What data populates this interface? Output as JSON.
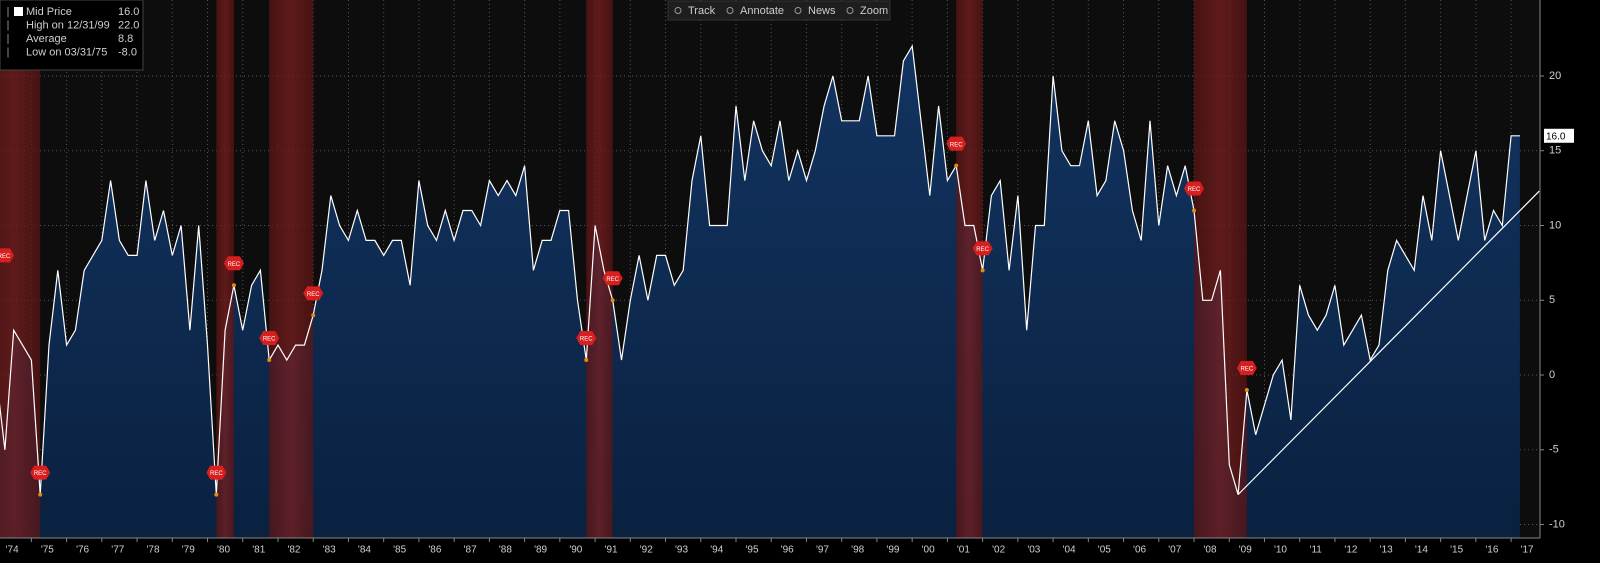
{
  "chart_data": {
    "type": "area",
    "toolbar": [
      "Track",
      "Annotate",
      "News",
      "Zoom"
    ],
    "legend": [
      {
        "label": "Mid Price",
        "value": "16.0"
      },
      {
        "label": "High on 12/31/99",
        "value": "22.0"
      },
      {
        "label": "Average",
        "value": "8.8"
      },
      {
        "label": "Low on 03/31/75",
        "value": "-8.0"
      }
    ],
    "recession_label": "REC",
    "recessions": [
      [
        1973.75,
        1975.25
      ],
      [
        1980.25,
        1980.75
      ],
      [
        1981.75,
        1983.0
      ],
      [
        1990.75,
        1991.5
      ],
      [
        2001.25,
        2002.0
      ],
      [
        2008.0,
        2009.5
      ]
    ],
    "x": [
      1974.0,
      1974.25,
      1974.5,
      1974.75,
      1975.0,
      1975.25,
      1975.5,
      1975.75,
      1976.0,
      1976.25,
      1976.5,
      1976.75,
      1977.0,
      1977.25,
      1977.5,
      1977.75,
      1978.0,
      1978.25,
      1978.5,
      1978.75,
      1979.0,
      1979.25,
      1979.5,
      1979.75,
      1980.0,
      1980.25,
      1980.5,
      1980.75,
      1981.0,
      1981.25,
      1981.5,
      1981.75,
      1982.0,
      1982.25,
      1982.5,
      1982.75,
      1983.0,
      1983.25,
      1983.5,
      1983.75,
      1984.0,
      1984.25,
      1984.5,
      1984.75,
      1985.0,
      1985.25,
      1985.5,
      1985.75,
      1986.0,
      1986.25,
      1986.5,
      1986.75,
      1987.0,
      1987.25,
      1987.5,
      1987.75,
      1988.0,
      1988.25,
      1988.5,
      1988.75,
      1989.0,
      1989.25,
      1989.5,
      1989.75,
      1990.0,
      1990.25,
      1990.5,
      1990.75,
      1991.0,
      1991.25,
      1991.5,
      1991.75,
      1992.0,
      1992.25,
      1992.5,
      1992.75,
      1993.0,
      1993.25,
      1993.5,
      1993.75,
      1994.0,
      1994.25,
      1994.5,
      1994.75,
      1995.0,
      1995.25,
      1995.5,
      1995.75,
      1996.0,
      1996.25,
      1996.5,
      1996.75,
      1997.0,
      1997.25,
      1997.5,
      1997.75,
      1998.0,
      1998.25,
      1998.5,
      1998.75,
      1999.0,
      1999.25,
      1999.5,
      1999.75,
      2000.0,
      2000.25,
      2000.5,
      2000.75,
      2001.0,
      2001.25,
      2001.5,
      2001.75,
      2002.0,
      2002.25,
      2002.5,
      2002.75,
      2003.0,
      2003.25,
      2003.5,
      2003.75,
      2004.0,
      2004.25,
      2004.5,
      2004.75,
      2005.0,
      2005.25,
      2005.5,
      2005.75,
      2006.0,
      2006.25,
      2006.5,
      2006.75,
      2007.0,
      2007.25,
      2007.5,
      2007.75,
      2008.0,
      2008.25,
      2008.5,
      2008.75,
      2009.0,
      2009.25,
      2009.5,
      2009.75,
      2010.0,
      2010.25,
      2010.5,
      2010.75,
      2011.0,
      2011.25,
      2011.5,
      2011.75,
      2012.0,
      2012.25,
      2012.5,
      2012.75,
      2013.0,
      2013.25,
      2013.5,
      2013.75,
      2014.0,
      2014.25,
      2014.5,
      2014.75,
      2015.0,
      2015.25,
      2015.5,
      2015.75,
      2016.0,
      2016.25,
      2016.5,
      2016.75,
      2017.0,
      2017.25
    ],
    "series": [
      {
        "name": "Mid Price",
        "color": "#ffffff",
        "fill": "#123461",
        "values": [
          0,
          -5,
          3,
          2,
          1,
          -8,
          2,
          7,
          2,
          3,
          7,
          8,
          9,
          13,
          9,
          8,
          8,
          13,
          9,
          11,
          8,
          10,
          3,
          10,
          2,
          -8,
          3,
          6,
          3,
          6,
          7,
          1,
          2,
          1,
          2,
          2,
          4,
          7,
          12,
          10,
          9,
          11,
          9,
          9,
          8,
          9,
          9,
          6,
          13,
          10,
          9,
          11,
          9,
          11,
          11,
          10,
          13,
          12,
          13,
          12,
          14,
          7,
          9,
          9,
          11,
          11,
          5,
          1,
          10,
          7,
          5,
          1,
          5,
          8,
          5,
          8,
          8,
          6,
          7,
          13,
          16,
          10,
          10,
          10,
          18,
          13,
          17,
          15,
          14,
          17,
          13,
          15,
          13,
          15,
          18,
          20,
          17,
          17,
          17,
          20,
          16,
          16,
          16,
          21,
          22,
          17,
          12,
          18,
          13,
          14,
          10,
          10,
          7,
          12,
          13,
          7,
          12,
          3,
          10,
          10,
          20,
          15,
          14,
          14,
          17,
          12,
          13,
          17,
          15,
          11,
          9,
          17,
          10,
          14,
          12,
          14,
          11,
          5,
          5,
          7,
          -6,
          -8,
          -1,
          -4,
          -2,
          0,
          1,
          -3,
          6,
          4,
          3,
          4,
          6,
          2,
          3,
          4,
          1,
          2,
          7,
          9,
          8,
          7,
          12,
          9,
          15,
          12,
          9,
          12,
          15,
          9,
          11,
          10,
          16,
          16
        ]
      }
    ],
    "trendline": {
      "x": [
        2009.25,
        2017.8
      ],
      "values": [
        -8,
        12.3
      ]
    },
    "xlim": [
      1974.11,
      2017.82
    ],
    "xticks": [
      {
        "value": 1974,
        "label": "'74"
      },
      {
        "value": 1975,
        "label": "'75"
      },
      {
        "value": 1976,
        "label": "'76"
      },
      {
        "value": 1977,
        "label": "'77"
      },
      {
        "value": 1978,
        "label": "'78"
      },
      {
        "value": 1979,
        "label": "'79"
      },
      {
        "value": 1980,
        "label": "'80"
      },
      {
        "value": 1981,
        "label": "'81"
      },
      {
        "value": 1982,
        "label": "'82"
      },
      {
        "value": 1983,
        "label": "'83"
      },
      {
        "value": 1984,
        "label": "'84"
      },
      {
        "value": 1985,
        "label": "'85"
      },
      {
        "value": 1986,
        "label": "'86"
      },
      {
        "value": 1987,
        "label": "'87"
      },
      {
        "value": 1988,
        "label": "'88"
      },
      {
        "value": 1989,
        "label": "'89"
      },
      {
        "value": 1990,
        "label": "'90"
      },
      {
        "value": 1991,
        "label": "'91"
      },
      {
        "value": 1992,
        "label": "'92"
      },
      {
        "value": 1993,
        "label": "'93"
      },
      {
        "value": 1994,
        "label": "'94"
      },
      {
        "value": 1995,
        "label": "'95"
      },
      {
        "value": 1996,
        "label": "'96"
      },
      {
        "value": 1997,
        "label": "'97"
      },
      {
        "value": 1998,
        "label": "'98"
      },
      {
        "value": 1999,
        "label": "'99"
      },
      {
        "value": 2000,
        "label": "'00"
      },
      {
        "value": 2001,
        "label": "'01"
      },
      {
        "value": 2002,
        "label": "'02"
      },
      {
        "value": 2003,
        "label": "'03"
      },
      {
        "value": 2004,
        "label": "'04"
      },
      {
        "value": 2005,
        "label": "'05"
      },
      {
        "value": 2006,
        "label": "'06"
      },
      {
        "value": 2007,
        "label": "'07"
      },
      {
        "value": 2008,
        "label": "'08"
      },
      {
        "value": 2009,
        "label": "'09"
      },
      {
        "value": 2010,
        "label": "'10"
      },
      {
        "value": 2011,
        "label": "'11"
      },
      {
        "value": 2012,
        "label": "'12"
      },
      {
        "value": 2013,
        "label": "'13"
      },
      {
        "value": 2014,
        "label": "'14"
      },
      {
        "value": 2015,
        "label": "'15"
      },
      {
        "value": 2016,
        "label": "'16"
      },
      {
        "value": 2017,
        "label": "'17"
      }
    ],
    "ylim": [
      -10.9,
      25.08
    ],
    "yticks": [
      -10,
      -5,
      0,
      5,
      10,
      15,
      20
    ],
    "grid": true
  }
}
